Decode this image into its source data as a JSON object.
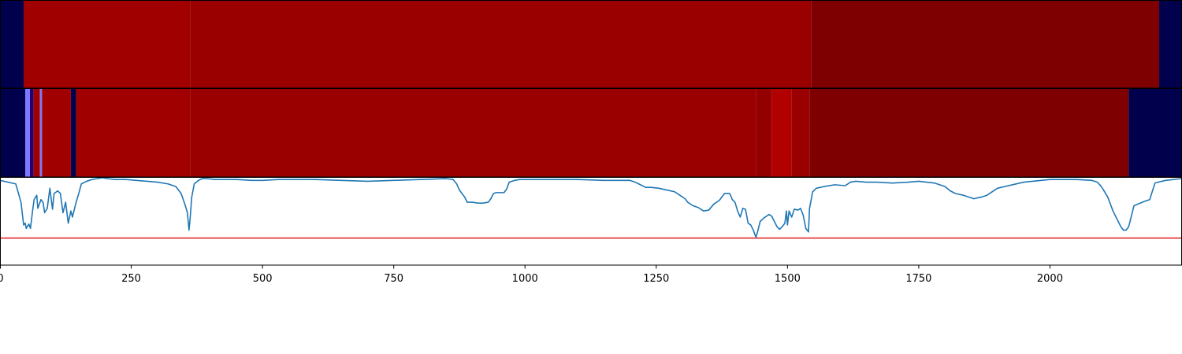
{
  "chart_data": {
    "type": "heatmap",
    "xlim": [
      0,
      2250
    ],
    "x_ticks": [
      0,
      250,
      500,
      750,
      1000,
      1250,
      1500,
      1750,
      2000
    ],
    "x_tick_labels": [
      "0",
      "250",
      "500",
      "750",
      "1000",
      "1250",
      "1500",
      "1750",
      "2000"
    ],
    "grid": false,
    "legend": "none",
    "panels": [
      {
        "type": "heatmap",
        "segments": [
          {
            "start": 0,
            "end": 45,
            "color": "#00004c"
          },
          {
            "start": 45,
            "end": 362,
            "color": "#a00000"
          },
          {
            "start": 362,
            "end": 1545,
            "color": "#9a0000"
          },
          {
            "start": 1545,
            "end": 2208,
            "color": "#7e0000"
          },
          {
            "start": 2208,
            "end": 2250,
            "color": "#00004c"
          }
        ]
      },
      {
        "type": "heatmap",
        "segments": [
          {
            "start": 0,
            "end": 48,
            "color": "#00004c"
          },
          {
            "start": 48,
            "end": 57,
            "color": "#7a7aff"
          },
          {
            "start": 57,
            "end": 64,
            "color": "#2a0070"
          },
          {
            "start": 64,
            "end": 76,
            "color": "#a00000"
          },
          {
            "start": 76,
            "end": 80,
            "color": "#7a7aff"
          },
          {
            "start": 80,
            "end": 135,
            "color": "#a00000"
          },
          {
            "start": 135,
            "end": 145,
            "color": "#00004c"
          },
          {
            "start": 145,
            "end": 362,
            "color": "#a00000"
          },
          {
            "start": 362,
            "end": 1440,
            "color": "#9a0000"
          },
          {
            "start": 1440,
            "end": 1470,
            "color": "#940000"
          },
          {
            "start": 1470,
            "end": 1508,
            "color": "#b00000"
          },
          {
            "start": 1508,
            "end": 1542,
            "color": "#9a0000"
          },
          {
            "start": 1542,
            "end": 2150,
            "color": "#7e0000"
          },
          {
            "start": 2150,
            "end": 2250,
            "color": "#00004c"
          }
        ]
      },
      {
        "type": "line",
        "ylim": [
          0,
          1
        ],
        "threshold": {
          "y": 0.31,
          "color": "#e31a1c"
        },
        "line_color": "#1f77b4",
        "x": [
          0,
          30,
          40,
          45,
          48,
          50,
          55,
          58,
          62,
          65,
          70,
          72,
          78,
          82,
          85,
          90,
          95,
          100,
          103,
          110,
          115,
          120,
          125,
          130,
          135,
          138,
          145,
          150,
          155,
          165,
          175,
          185,
          195,
          205,
          220,
          240,
          260,
          280,
          300,
          320,
          335,
          345,
          352,
          357,
          360,
          362,
          365,
          370,
          378,
          385,
          395,
          410,
          430,
          450,
          480,
          500,
          530,
          560,
          600,
          650,
          700,
          750,
          800,
          850,
          863,
          870,
          875,
          880,
          885,
          890,
          900,
          910,
          920,
          930,
          935,
          940,
          945,
          960,
          965,
          970,
          980,
          990,
          1000,
          1050,
          1100,
          1150,
          1200,
          1210,
          1220,
          1230,
          1240,
          1255,
          1270,
          1285,
          1295,
          1305,
          1310,
          1320,
          1330,
          1340,
          1350,
          1360,
          1370,
          1380,
          1390,
          1395,
          1400,
          1405,
          1410,
          1415,
          1420,
          1425,
          1430,
          1435,
          1438,
          1440,
          1443,
          1448,
          1455,
          1465,
          1470,
          1475,
          1480,
          1485,
          1490,
          1495,
          1498,
          1500,
          1503,
          1508,
          1513,
          1520,
          1525,
          1530,
          1535,
          1540,
          1542,
          1548,
          1555,
          1570,
          1590,
          1610,
          1620,
          1630,
          1650,
          1670,
          1700,
          1730,
          1750,
          1780,
          1800,
          1810,
          1820,
          1835,
          1850,
          1855,
          1862,
          1870,
          1880,
          1900,
          1950,
          2000,
          2050,
          2080,
          2090,
          2095,
          2100,
          2110,
          2120,
          2130,
          2135,
          2140,
          2145,
          2150,
          2160,
          2180,
          2190,
          2200,
          2220,
          2250
        ],
        "y": [
          0.97,
          0.93,
          0.72,
          0.46,
          0.48,
          0.42,
          0.47,
          0.42,
          0.62,
          0.75,
          0.8,
          0.65,
          0.75,
          0.72,
          0.6,
          0.65,
          0.88,
          0.64,
          0.82,
          0.85,
          0.82,
          0.6,
          0.72,
          0.48,
          0.62,
          0.55,
          0.72,
          0.82,
          0.93,
          0.96,
          0.98,
          0.99,
          1.0,
          0.99,
          0.98,
          0.98,
          0.97,
          0.96,
          0.95,
          0.93,
          0.9,
          0.82,
          0.7,
          0.6,
          0.4,
          0.52,
          0.77,
          0.93,
          0.97,
          0.99,
          0.99,
          0.98,
          0.98,
          0.98,
          0.97,
          0.97,
          0.98,
          0.98,
          0.98,
          0.97,
          0.96,
          0.97,
          0.98,
          0.99,
          0.98,
          0.93,
          0.86,
          0.82,
          0.78,
          0.72,
          0.72,
          0.71,
          0.71,
          0.72,
          0.76,
          0.82,
          0.83,
          0.83,
          0.87,
          0.95,
          0.97,
          0.98,
          0.98,
          0.98,
          0.98,
          0.97,
          0.97,
          0.95,
          0.92,
          0.89,
          0.89,
          0.88,
          0.86,
          0.84,
          0.8,
          0.76,
          0.72,
          0.68,
          0.66,
          0.62,
          0.63,
          0.7,
          0.74,
          0.82,
          0.82,
          0.75,
          0.72,
          0.62,
          0.55,
          0.65,
          0.64,
          0.48,
          0.46,
          0.4,
          0.35,
          0.32,
          0.38,
          0.5,
          0.54,
          0.58,
          0.56,
          0.5,
          0.44,
          0.41,
          0.44,
          0.48,
          0.62,
          0.46,
          0.62,
          0.55,
          0.64,
          0.63,
          0.65,
          0.57,
          0.42,
          0.38,
          0.65,
          0.84,
          0.88,
          0.9,
          0.92,
          0.91,
          0.95,
          0.96,
          0.95,
          0.95,
          0.94,
          0.95,
          0.96,
          0.94,
          0.9,
          0.85,
          0.82,
          0.8,
          0.77,
          0.76,
          0.77,
          0.78,
          0.8,
          0.88,
          0.95,
          0.98,
          0.98,
          0.97,
          0.95,
          0.92,
          0.88,
          0.78,
          0.62,
          0.5,
          0.44,
          0.4,
          0.4,
          0.44,
          0.68,
          0.73,
          0.75,
          0.94,
          0.97,
          0.99
        ]
      }
    ]
  }
}
